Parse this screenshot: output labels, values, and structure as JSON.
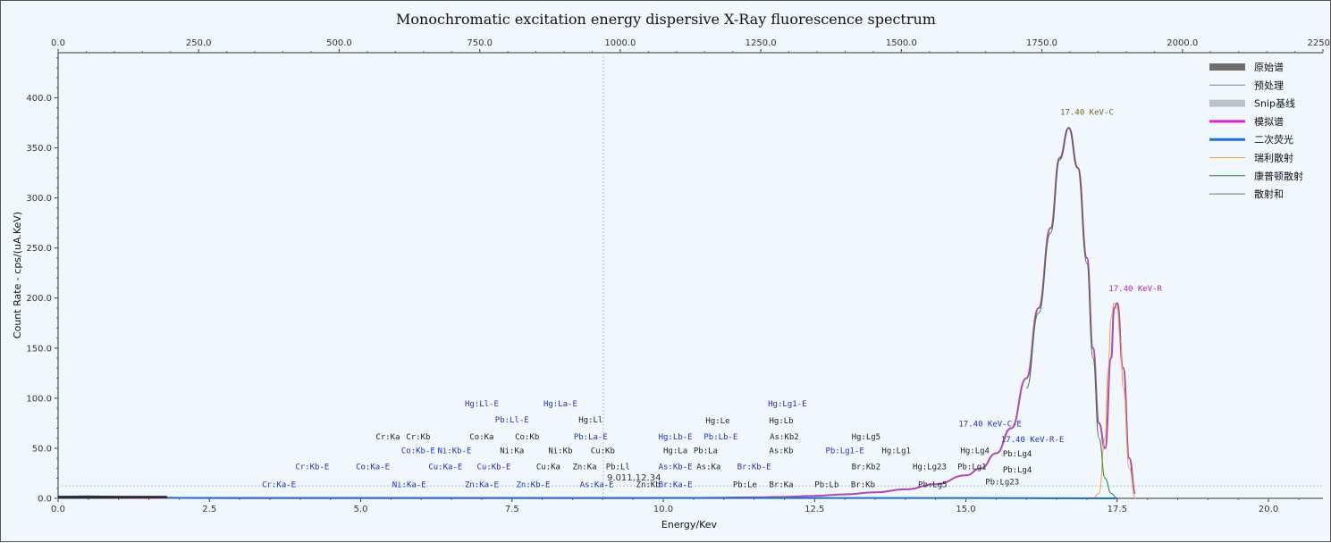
{
  "chart_data": {
    "type": "line",
    "title": "Monochromatic excitation energy dispersive X-Ray fluorescence spectrum",
    "xlabel": "Energy/Kev",
    "ylabel": "Count Rate - cps/(uA.KeV)",
    "xlim": [
      0,
      20.9
    ],
    "ylim": [
      0,
      445
    ],
    "x_ticks": [
      "0.0",
      "2.5",
      "5.0",
      "7.5",
      "10.0",
      "12.5",
      "15.0",
      "17.5",
      "20.0"
    ],
    "y_ticks": [
      "0.0",
      "50.0",
      "100.0",
      "150.0",
      "200.0",
      "250.0",
      "300.0",
      "350.0",
      "400.0"
    ],
    "top_axis": {
      "ticks": [
        "0.0",
        "250.0",
        "500.0",
        "750.0",
        "1000.0",
        "1250.0",
        "1500.0",
        "1750.0",
        "2000.0",
        "2250.0"
      ],
      "xlim": [
        0,
        2250
      ]
    },
    "cursor": {
      "x": 9.01,
      "y": 12.34,
      "label": "9.011,12.34"
    },
    "legend_position": "top-right",
    "legend": [
      {
        "name": "原始谱",
        "color": "#6e6e6e",
        "style": "thick"
      },
      {
        "name": "预处理",
        "color": "#808080",
        "style": "thin"
      },
      {
        "name": "Snip基线",
        "color": "#bcc3cc",
        "style": "thick"
      },
      {
        "name": "模拟谱",
        "color": "#e020d8",
        "style": "medium"
      },
      {
        "name": "二次荧光",
        "color": "#1a6fe0",
        "style": "medium"
      },
      {
        "name": "瑞利散射",
        "color": "#f0a040",
        "style": "thin"
      },
      {
        "name": "康普顿散射",
        "color": "#2e7d32",
        "style": "thin"
      },
      {
        "name": "散射和",
        "color": "#707070",
        "style": "thin"
      }
    ],
    "series": [
      {
        "name": "模拟谱",
        "color": "#e020d8",
        "x": [
          0,
          1,
          2,
          3,
          4,
          5,
          6,
          7,
          8,
          9,
          10,
          10.5,
          11,
          11.5,
          12,
          12.5,
          13,
          13.5,
          14,
          14.5,
          15,
          15.25,
          15.5,
          15.75,
          16,
          16.2,
          16.4,
          16.55,
          16.7,
          16.85,
          17.0,
          17.1,
          17.2,
          17.3,
          17.4,
          17.45,
          17.5,
          17.6,
          17.7,
          17.8
        ],
        "y": [
          1.5,
          0.8,
          0.4,
          0.3,
          0.3,
          0.3,
          0.3,
          0.3,
          0.3,
          0.3,
          0.4,
          0.5,
          0.7,
          1,
          1.5,
          2.5,
          4,
          6,
          9,
          14,
          23,
          30,
          45,
          70,
          120,
          190,
          270,
          340,
          370,
          330,
          240,
          150,
          75,
          50,
          140,
          190,
          195,
          130,
          40,
          5
        ]
      },
      {
        "name": "原始谱",
        "color": "#8a6a8a",
        "x": [
          0,
          1,
          2,
          3,
          4,
          5,
          6,
          7,
          8,
          9,
          10,
          10.5,
          11,
          11.5,
          12,
          12.5,
          13,
          13.5,
          14,
          14.5,
          15,
          15.25,
          15.5,
          15.75,
          16,
          16.2,
          16.4,
          16.55,
          16.7,
          16.85,
          17.0,
          17.1,
          17.2,
          17.3,
          17.4,
          17.45,
          17.5,
          17.6,
          17.7,
          17.8
        ],
        "y": [
          1.5,
          0.8,
          0.4,
          0.3,
          0.3,
          0.3,
          0.3,
          0.3,
          0.3,
          0.3,
          0.4,
          0.5,
          0.7,
          1,
          1.5,
          2.5,
          4,
          6,
          9,
          14,
          23,
          30,
          45,
          70,
          120,
          190,
          270,
          340,
          370,
          330,
          240,
          150,
          75,
          50,
          140,
          190,
          195,
          130,
          40,
          5
        ]
      },
      {
        "name": "瑞利散射",
        "color": "#f0a040",
        "x": [
          17.1,
          17.2,
          17.3,
          17.35,
          17.4,
          17.45,
          17.5,
          17.55,
          17.6,
          17.7,
          17.8
        ],
        "y": [
          0,
          5,
          60,
          130,
          180,
          195,
          190,
          160,
          110,
          30,
          0
        ]
      },
      {
        "name": "康普顿散射",
        "color": "#2e7d32",
        "x": [
          16.0,
          16.2,
          16.4,
          16.55,
          16.7,
          16.85,
          17.0,
          17.1,
          17.2,
          17.3,
          17.4,
          17.5
        ],
        "y": [
          110,
          185,
          265,
          338,
          370,
          330,
          235,
          140,
          60,
          20,
          5,
          0
        ]
      },
      {
        "name": "二次荧光",
        "color": "#1a6fe0",
        "x": [
          0,
          0.5,
          1,
          1.5,
          2,
          3,
          5,
          10,
          15,
          17.5
        ],
        "y": [
          1.5,
          2,
          1.5,
          1,
          0.5,
          0.3,
          0.3,
          0.3,
          0.3,
          0
        ]
      }
    ],
    "peak_labels": [
      {
        "text": "17.40 KeV-C",
        "x": 17.0,
        "y": 383,
        "color": "#6e6a1e"
      },
      {
        "text": "17.40 KeV-R",
        "x": 17.8,
        "y": 207,
        "color": "#c020c0"
      }
    ],
    "annotations": [
      {
        "text": "Cr:Ka-E",
        "x": 3.65,
        "y": 11,
        "color": "#2030c0"
      },
      {
        "text": "Cr:Kb-E",
        "x": 4.2,
        "y": 29,
        "color": "#2030c0"
      },
      {
        "text": "Cr:Ka",
        "x": 5.45,
        "y": 59,
        "color": "#222222"
      },
      {
        "text": "Cr:Kb",
        "x": 5.95,
        "y": 59,
        "color": "#222222"
      },
      {
        "text": "Co:Ka-E",
        "x": 5.2,
        "y": 29,
        "color": "#2030c0"
      },
      {
        "text": "Co:Kb-E",
        "x": 5.95,
        "y": 45,
        "color": "#2030c0"
      },
      {
        "text": "Co:Ka",
        "x": 7.0,
        "y": 59,
        "color": "#222222"
      },
      {
        "text": "Co:Kb",
        "x": 7.75,
        "y": 59,
        "color": "#222222"
      },
      {
        "text": "Ni:Ka-E",
        "x": 5.8,
        "y": 11,
        "color": "#2030c0"
      },
      {
        "text": "Ni:Kb-E",
        "x": 6.55,
        "y": 45,
        "color": "#2030c0"
      },
      {
        "text": "Ni:Ka",
        "x": 7.5,
        "y": 45,
        "color": "#222222"
      },
      {
        "text": "Ni:Kb",
        "x": 8.3,
        "y": 45,
        "color": "#222222"
      },
      {
        "text": "Cu:Ka-E",
        "x": 6.4,
        "y": 29,
        "color": "#2030c0"
      },
      {
        "text": "Cu:Kb-E",
        "x": 7.2,
        "y": 29,
        "color": "#2030c0"
      },
      {
        "text": "Cu:Ka",
        "x": 8.1,
        "y": 29,
        "color": "#222222"
      },
      {
        "text": "Cu:Kb",
        "x": 9.0,
        "y": 45,
        "color": "#222222"
      },
      {
        "text": "Zn:Ka-E",
        "x": 7.0,
        "y": 11,
        "color": "#2030c0"
      },
      {
        "text": "Zn:Kb-E",
        "x": 7.85,
        "y": 11,
        "color": "#2030c0"
      },
      {
        "text": "Zn:Ka",
        "x": 8.7,
        "y": 29,
        "color": "#222222"
      },
      {
        "text": "Zn:Kb",
        "x": 9.75,
        "y": 11,
        "color": "#222222"
      },
      {
        "text": "Hg:Ll-E",
        "x": 7.0,
        "y": 92,
        "color": "#2030c0"
      },
      {
        "text": "Hg:La-E",
        "x": 8.3,
        "y": 92,
        "color": "#2030c0"
      },
      {
        "text": "Pb:Ll-E",
        "x": 7.5,
        "y": 76,
        "color": "#2030c0"
      },
      {
        "text": "Hg:Ll",
        "x": 8.8,
        "y": 76,
        "color": "#222222"
      },
      {
        "text": "Pb:La-E",
        "x": 8.8,
        "y": 59,
        "color": "#2030c0"
      },
      {
        "text": "Pb:Ll",
        "x": 9.25,
        "y": 29,
        "color": "#222222"
      },
      {
        "text": "As:Ka-E",
        "x": 8.9,
        "y": 11,
        "color": "#2030c0"
      },
      {
        "text": "As:Kb-E",
        "x": 10.2,
        "y": 29,
        "color": "#2030c0"
      },
      {
        "text": "As:Ka",
        "x": 10.75,
        "y": 29,
        "color": "#222222"
      },
      {
        "text": "As:Kb",
        "x": 11.95,
        "y": 45,
        "color": "#222222"
      },
      {
        "text": "As:Kb2",
        "x": 12.0,
        "y": 59,
        "color": "#222222"
      },
      {
        "text": "Hg:Lb-E",
        "x": 10.2,
        "y": 59,
        "color": "#2030c0"
      },
      {
        "text": "Hg:La",
        "x": 10.2,
        "y": 45,
        "color": "#222222"
      },
      {
        "text": "Pb:La",
        "x": 10.7,
        "y": 45,
        "color": "#222222"
      },
      {
        "text": "Pb:Lb-E",
        "x": 10.95,
        "y": 59,
        "color": "#2030c0"
      },
      {
        "text": "Hg:Le",
        "x": 10.9,
        "y": 75,
        "color": "#222222"
      },
      {
        "text": "Hg:Lb",
        "x": 11.95,
        "y": 75,
        "color": "#222222"
      },
      {
        "text": "Hg:Lg1-E",
        "x": 12.05,
        "y": 92,
        "color": "#2030c0"
      },
      {
        "text": "Br:Ka-E",
        "x": 10.2,
        "y": 11,
        "color": "#2030c0"
      },
      {
        "text": "Br:Kb-E",
        "x": 11.5,
        "y": 29,
        "color": "#2030c0"
      },
      {
        "text": "Br:Ka",
        "x": 11.95,
        "y": 11,
        "color": "#222222"
      },
      {
        "text": "Br:Kb",
        "x": 13.3,
        "y": 11,
        "color": "#222222"
      },
      {
        "text": "Br:Kb2",
        "x": 13.35,
        "y": 29,
        "color": "#222222"
      },
      {
        "text": "Pb:Le",
        "x": 11.35,
        "y": 11,
        "color": "#222222"
      },
      {
        "text": "Pb:Lb",
        "x": 12.7,
        "y": 11,
        "color": "#222222"
      },
      {
        "text": "Pb:Lg1-E",
        "x": 13.0,
        "y": 45,
        "color": "#2030c0"
      },
      {
        "text": "Hg:Lg5",
        "x": 13.35,
        "y": 59,
        "color": "#222222"
      },
      {
        "text": "Hg:Lg1",
        "x": 13.85,
        "y": 45,
        "color": "#222222"
      },
      {
        "text": "Hg:Lg23",
        "x": 14.4,
        "y": 29,
        "color": "#222222"
      },
      {
        "text": "Pb:Lg5",
        "x": 14.45,
        "y": 11,
        "color": "#222222"
      },
      {
        "text": "Hg:Lg4",
        "x": 15.15,
        "y": 45,
        "color": "#222222"
      },
      {
        "text": "Pb:Lg1",
        "x": 15.1,
        "y": 29,
        "color": "#222222"
      },
      {
        "text": "Pb:Lg23",
        "x": 15.6,
        "y": 14,
        "color": "#222222"
      },
      {
        "text": "Pb:Lg4",
        "x": 15.85,
        "y": 42,
        "color": "#222222"
      },
      {
        "text": "Pb:Lg4",
        "x": 15.85,
        "y": 26,
        "color": "#222222"
      },
      {
        "text": "17.40 KeV-C-E",
        "x": 15.4,
        "y": 72,
        "color": "#2030c0"
      },
      {
        "text": "17.40 KeV-R-E",
        "x": 16.1,
        "y": 56,
        "color": "#2030c0"
      }
    ]
  }
}
